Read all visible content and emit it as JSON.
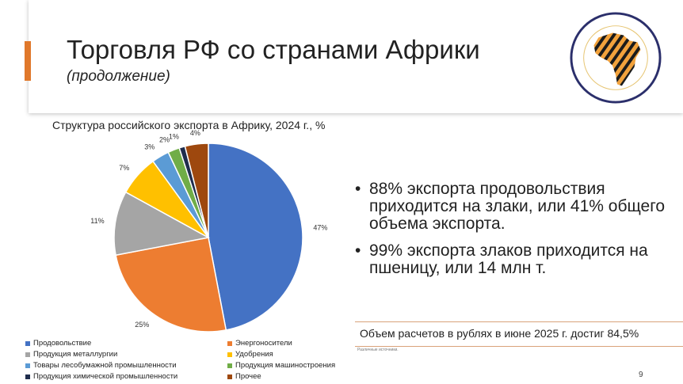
{
  "slide": {
    "title": "Торговля РФ со странами Африки",
    "subtitle": "(продолжение)",
    "page_number": "9"
  },
  "bullets": [
    "88% экспорта продовольствия приходится на злаки, или 41% общего объема экспорта.",
    "99% экспорта злаков приходится на пшеницу, или 14 млн т."
  ],
  "callout": "Объем расчетов в рублях в июне 2025 г. достиг 84,5%",
  "source": "Различные источники.",
  "chart_data": {
    "type": "pie",
    "title": "Структура российского экспорта в Африку, 2024 г., %",
    "legend_position": "bottom",
    "categories": [
      "Продовольствие",
      "Энергоносители",
      "Продукция металлургии",
      "Удобрения",
      "Товары лесобумажной промышленности",
      "Продукция машиностроения",
      "Продукция химической промышленности",
      "Прочее"
    ],
    "values": [
      47,
      25,
      11,
      7,
      3,
      2,
      1,
      4
    ],
    "data_labels": [
      "47%",
      "25%",
      "11%",
      "7%",
      "3%",
      "2%",
      "1%",
      "4%"
    ],
    "colors": [
      "#4472c4",
      "#ed7d31",
      "#a5a5a5",
      "#ffc000",
      "#5b9bd5",
      "#70ad47",
      "#1f2d4d",
      "#9e480e"
    ]
  }
}
